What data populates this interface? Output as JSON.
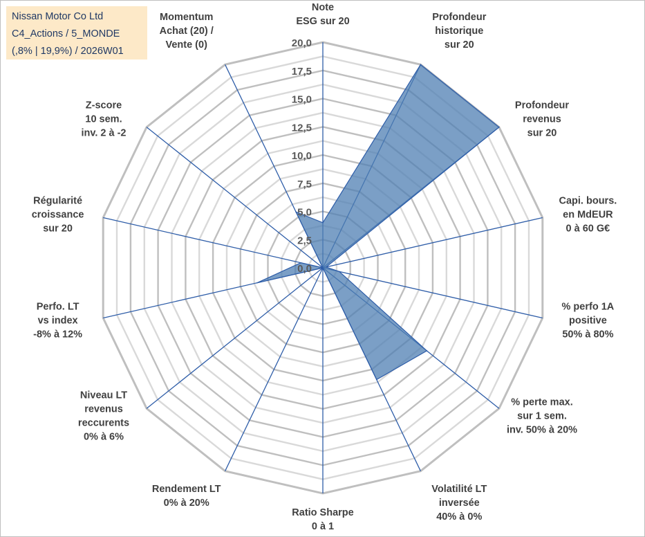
{
  "info_box": {
    "company": "Nissan Motor Co Ltd",
    "portfolio": "C4_Actions / 5_MONDE",
    "params": "(,8% | 19,9%) / 2026W01"
  },
  "chart_data": {
    "type": "radar",
    "rmax": 20,
    "radial_ticks": [
      "0,0",
      "2,5",
      "5,0",
      "7,5",
      "10,0",
      "12,5",
      "15,0",
      "17,5",
      "20,0"
    ],
    "grid_levels": 16,
    "axes": [
      {
        "label": [
          "Note",
          "ESG sur 20"
        ],
        "value": 4.0
      },
      {
        "label": [
          "Profondeur",
          "historique",
          "sur 20"
        ],
        "value": 20.0
      },
      {
        "label": [
          "Profondeur",
          "revenus",
          "sur 20"
        ],
        "value": 20.0
      },
      {
        "label": [
          "Capi. bours.",
          "en MdEUR",
          "0 à 60 G€"
        ],
        "value": 0.3
      },
      {
        "label": [
          "% perfo 1A",
          "positive",
          "50% à 80%"
        ],
        "value": 1.5
      },
      {
        "label": [
          "% perte max.",
          "sur 1 sem.",
          "inv. 50% à 20%"
        ],
        "value": 11.8
      },
      {
        "label": [
          "Volatilité LT",
          "inversée",
          "40% à 0%"
        ],
        "value": 11.0
      },
      {
        "label": [
          "Ratio Sharpe",
          "0 à 1"
        ],
        "value": 0.0
      },
      {
        "label": [
          "Rendement LT",
          "0% à 20%"
        ],
        "value": 0.0
      },
      {
        "label": [
          "Niveau LT",
          "revenus",
          "reccurents",
          "0% à 6%"
        ],
        "value": 0.0
      },
      {
        "label": [
          "Perfo. LT",
          "vs index",
          "-8% à 12%"
        ],
        "value": 6.0
      },
      {
        "label": [
          "Régularité",
          "croissance",
          "sur 20"
        ],
        "value": 2.0
      },
      {
        "label": [
          "Z-score",
          "10 sem.",
          "inv. 2 à -2"
        ],
        "value": 0.0
      },
      {
        "label": [
          "Momentum",
          "Achat (20) /",
          "Vente (0)"
        ],
        "value": 5.5
      }
    ],
    "series": [
      {
        "values": [
          4.0,
          20.0,
          20.0,
          0.3,
          1.5,
          11.8,
          11.0,
          0.0,
          0.0,
          0.0,
          6.0,
          2.0,
          0.0,
          5.5
        ]
      }
    ],
    "colors": {
      "fill": "#4f7fb3",
      "fill_opacity": 0.75,
      "line": "#2e5da8",
      "axis": "#2e5da8",
      "grid": "#bfbfbf",
      "grid_inner": "#d9d9d9"
    }
  }
}
